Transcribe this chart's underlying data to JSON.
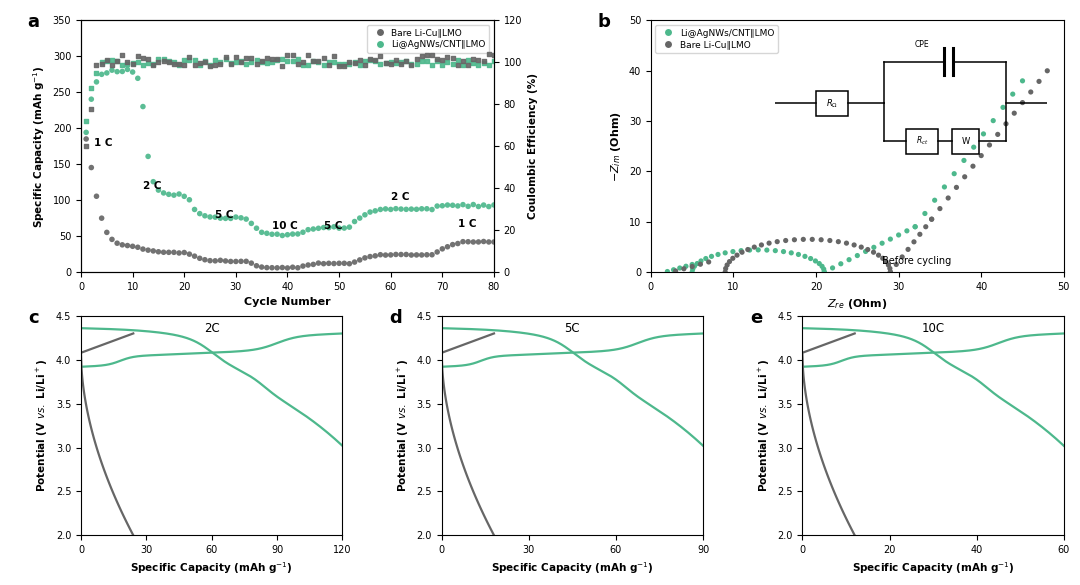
{
  "green_color": "#4db88c",
  "gray_color": "#666666",
  "background_color": "#ffffff",
  "panel_a": {
    "xlim": [
      0,
      80
    ],
    "ylim_left": [
      0,
      350
    ],
    "ylim_right": [
      0,
      120
    ],
    "yticks_left": [
      0,
      50,
      100,
      150,
      200,
      250,
      300,
      350
    ],
    "xticks": [
      0,
      10,
      20,
      30,
      40,
      50,
      60,
      70,
      80
    ],
    "yticks_right": [
      0,
      20,
      40,
      60,
      80,
      100,
      120
    ],
    "rate_labels": [
      "1 C",
      "2 C",
      "5 C",
      "10 C",
      "5 C",
      "2 C",
      "1 C"
    ],
    "rate_x": [
      2.5,
      12,
      26,
      37,
      47,
      60,
      73
    ],
    "rate_y": [
      175,
      115,
      75,
      60,
      60,
      100,
      62
    ]
  },
  "panel_b": {
    "xlim": [
      0,
      50
    ],
    "ylim": [
      0,
      50
    ],
    "xticks": [
      0,
      10,
      20,
      30,
      40,
      50
    ],
    "yticks": [
      0,
      10,
      20,
      30,
      40,
      50
    ]
  },
  "panel_c": {
    "xlim": [
      0,
      120
    ],
    "xticks": [
      0,
      30,
      60,
      90,
      120
    ]
  },
  "panel_d": {
    "xlim": [
      0,
      90
    ],
    "xticks": [
      0,
      30,
      60,
      90
    ]
  },
  "panel_e": {
    "xlim": [
      0,
      60
    ],
    "xticks": [
      0,
      20,
      40,
      60
    ]
  },
  "galv_ylim": [
    2.0,
    4.5
  ],
  "galv_yticks": [
    2.0,
    2.5,
    3.0,
    3.5,
    4.0,
    4.5
  ]
}
